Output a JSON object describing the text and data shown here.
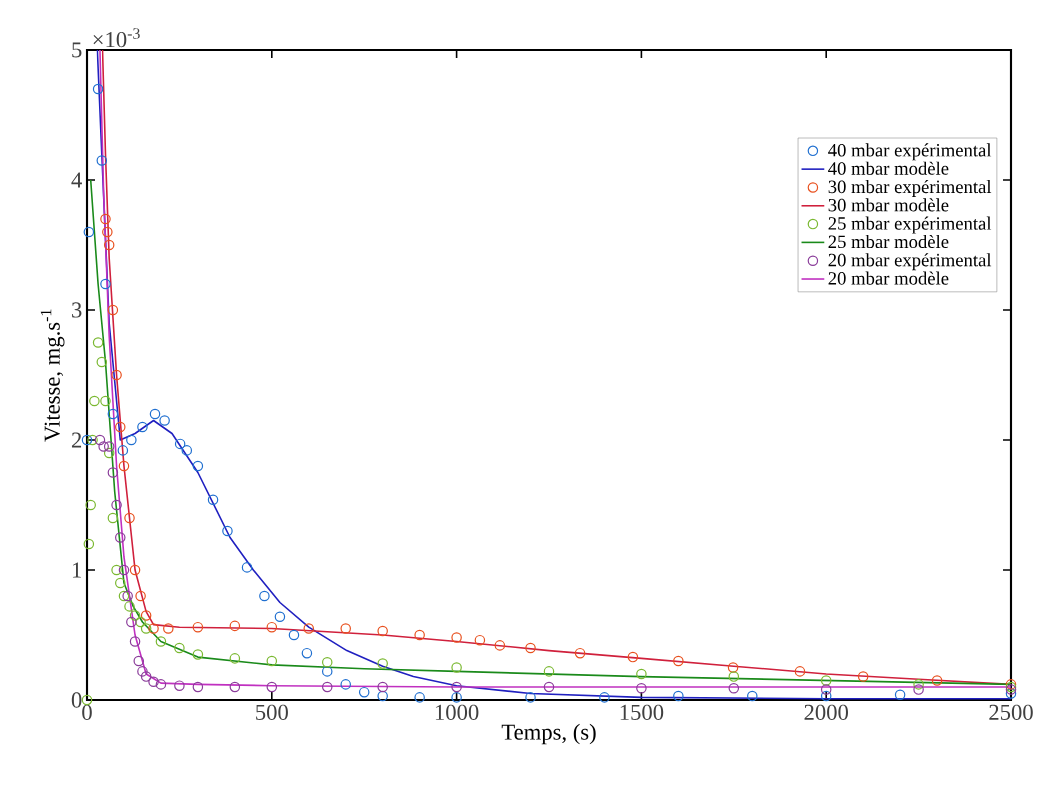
{
  "chart_data": {
    "type": "line",
    "xlabel": "Temps, (s)",
    "ylabel": "Vitesse, mg.s$^{-1}$",
    "annotations": [
      "×10$^{-3}$"
    ],
    "xlim": [
      0,
      2500
    ],
    "ylim": [
      0,
      5
    ],
    "xticks": [
      0,
      500,
      1000,
      1500,
      2000,
      2500
    ],
    "yticks": [
      0,
      1,
      2,
      3,
      4,
      5
    ],
    "grid": false,
    "legend": "top right",
    "series": [
      {
        "name": "40 mbar expérimental",
        "type": "scatter",
        "marker": "circle",
        "color": "#1f6fd0",
        "x": [
          0,
          5,
          30,
          40,
          50,
          70,
          97,
          120,
          150,
          184,
          210,
          252,
          270,
          300,
          341,
          380,
          433,
          480,
          522,
          560,
          595,
          650,
          700,
          750,
          800,
          900,
          1000,
          1200,
          1400,
          1600,
          1800,
          2000,
          2200,
          2500
        ],
        "values": [
          2.0,
          3.6,
          4.7,
          4.15,
          3.2,
          2.2,
          1.92,
          2.0,
          2.1,
          2.2,
          2.15,
          1.97,
          1.92,
          1.8,
          1.54,
          1.3,
          1.02,
          0.8,
          0.64,
          0.5,
          0.36,
          0.22,
          0.12,
          0.06,
          0.03,
          0.02,
          0.02,
          0.02,
          0.02,
          0.03,
          0.03,
          0.03,
          0.04,
          0.05
        ]
      },
      {
        "name": "40 mbar modèle",
        "marker": "none",
        "color": "#2020c0",
        "x": [
          28,
          40,
          60,
          90,
          130,
          180,
          230,
          300,
          387,
          450,
          522,
          600,
          703,
          800,
          883,
          1000,
          1200,
          1500,
          2000,
          2500
        ],
        "values": [
          5.0,
          4.2,
          2.9,
          2.0,
          2.05,
          2.15,
          2.05,
          1.75,
          1.25,
          1.0,
          0.75,
          0.56,
          0.38,
          0.26,
          0.18,
          0.11,
          0.05,
          0.02,
          0.01,
          0.01
        ]
      },
      {
        "name": "30 mbar expérimental",
        "type": "scatter",
        "marker": "circle",
        "color": "#e8501e",
        "x": [
          50,
          55,
          60,
          70,
          80,
          90,
          100,
          115,
          130,
          145,
          160,
          180,
          220,
          300,
          400,
          500,
          600,
          700,
          800,
          900,
          1000,
          1063,
          1117,
          1200,
          1334,
          1477,
          1600,
          1748,
          1929,
          2100,
          2300,
          2500
        ],
        "values": [
          3.7,
          3.6,
          3.5,
          3.0,
          2.5,
          2.1,
          1.8,
          1.4,
          1.0,
          0.8,
          0.65,
          0.55,
          0.55,
          0.56,
          0.57,
          0.56,
          0.55,
          0.55,
          0.53,
          0.5,
          0.48,
          0.46,
          0.42,
          0.4,
          0.36,
          0.33,
          0.3,
          0.25,
          0.22,
          0.18,
          0.15,
          0.12
        ]
      },
      {
        "name": "30 mbar modèle",
        "marker": "none",
        "color": "#d0203c",
        "x": [
          42,
          50,
          60,
          80,
          100,
          130,
          160,
          180,
          250,
          500,
          800,
          1000,
          1250,
          1500,
          1750,
          2000,
          2250,
          2500
        ],
        "values": [
          5.0,
          4.2,
          3.4,
          2.5,
          1.8,
          1.0,
          0.68,
          0.58,
          0.56,
          0.55,
          0.5,
          0.45,
          0.38,
          0.32,
          0.26,
          0.2,
          0.16,
          0.12
        ]
      },
      {
        "name": "25 mbar expérimental",
        "type": "scatter",
        "marker": "circle",
        "color": "#7ab830",
        "x": [
          0,
          5,
          10,
          15,
          20,
          30,
          40,
          50,
          60,
          70,
          80,
          90,
          100,
          115,
          130,
          145,
          160,
          200,
          250,
          300,
          400,
          500,
          650,
          800,
          1000,
          1250,
          1500,
          1750,
          2000,
          2250,
          2500
        ],
        "values": [
          0.0,
          1.2,
          1.5,
          2.0,
          2.3,
          2.75,
          2.6,
          2.3,
          1.9,
          1.4,
          1.0,
          0.9,
          0.8,
          0.72,
          0.65,
          0.6,
          0.55,
          0.45,
          0.4,
          0.35,
          0.32,
          0.3,
          0.29,
          0.28,
          0.25,
          0.22,
          0.2,
          0.18,
          0.15,
          0.12,
          0.1
        ]
      },
      {
        "name": "25 mbar modèle",
        "marker": "none",
        "color": "#1a8a1a",
        "x": [
          10,
          30,
          50,
          75,
          100,
          125,
          150,
          200,
          300,
          500,
          750,
          1000,
          1500,
          2000,
          2500
        ],
        "values": [
          4.0,
          3.2,
          2.6,
          1.6,
          0.9,
          0.72,
          0.6,
          0.45,
          0.33,
          0.27,
          0.24,
          0.22,
          0.18,
          0.15,
          0.12
        ]
      },
      {
        "name": "20 mbar expérimental",
        "type": "scatter",
        "marker": "circle",
        "color": "#8a3c9a",
        "x": [
          35,
          45,
          60,
          70,
          80,
          90,
          100,
          110,
          120,
          130,
          140,
          150,
          160,
          180,
          200,
          250,
          300,
          400,
          500,
          650,
          800,
          1000,
          1250,
          1500,
          1750,
          2000,
          2250,
          2500
        ],
        "values": [
          2.0,
          1.95,
          1.95,
          1.75,
          1.5,
          1.25,
          1.0,
          0.8,
          0.6,
          0.45,
          0.3,
          0.22,
          0.18,
          0.14,
          0.12,
          0.11,
          0.1,
          0.1,
          0.1,
          0.1,
          0.1,
          0.1,
          0.1,
          0.09,
          0.09,
          0.08,
          0.08,
          0.08
        ]
      },
      {
        "name": "20 mbar modèle",
        "marker": "none",
        "color": "#c030c0",
        "x": [
          35,
          45,
          60,
          80,
          100,
          130,
          160,
          200,
          300,
          500,
          1000,
          1500,
          2000,
          2500
        ],
        "values": [
          5.0,
          3.9,
          2.8,
          1.8,
          1.1,
          0.5,
          0.2,
          0.13,
          0.12,
          0.11,
          0.1,
          0.1,
          0.1,
          0.1
        ]
      }
    ]
  }
}
